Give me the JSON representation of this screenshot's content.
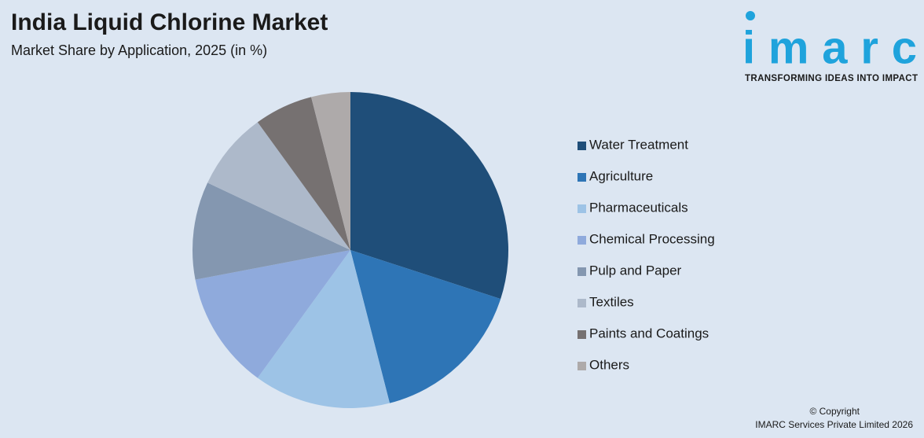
{
  "chart_data": {
    "type": "pie",
    "title": "India Liquid Chlorine Market",
    "subtitle": "Market Share by Application, 2025 (in %)",
    "categories": [
      "Water Treatment",
      "Agriculture",
      "Pharmaceuticals",
      "Chemical Processing",
      "Pulp and Paper",
      "Textiles",
      "Paints and Coatings",
      "Others"
    ],
    "values": [
      30,
      16,
      14,
      12,
      10,
      8,
      6,
      4
    ],
    "colors": [
      "#1f4e79",
      "#2e75b6",
      "#9dc3e6",
      "#8faadc",
      "#8497b0",
      "#adb9ca",
      "#767171",
      "#aeaaaa"
    ],
    "legend": "right"
  },
  "logo": {
    "name": "imarc",
    "tagline": "TRANSFORMING IDEAS INTO IMPACT"
  },
  "footer": {
    "copyright": "© Copyright",
    "company": "IMARC Services Private Limited 2026"
  }
}
